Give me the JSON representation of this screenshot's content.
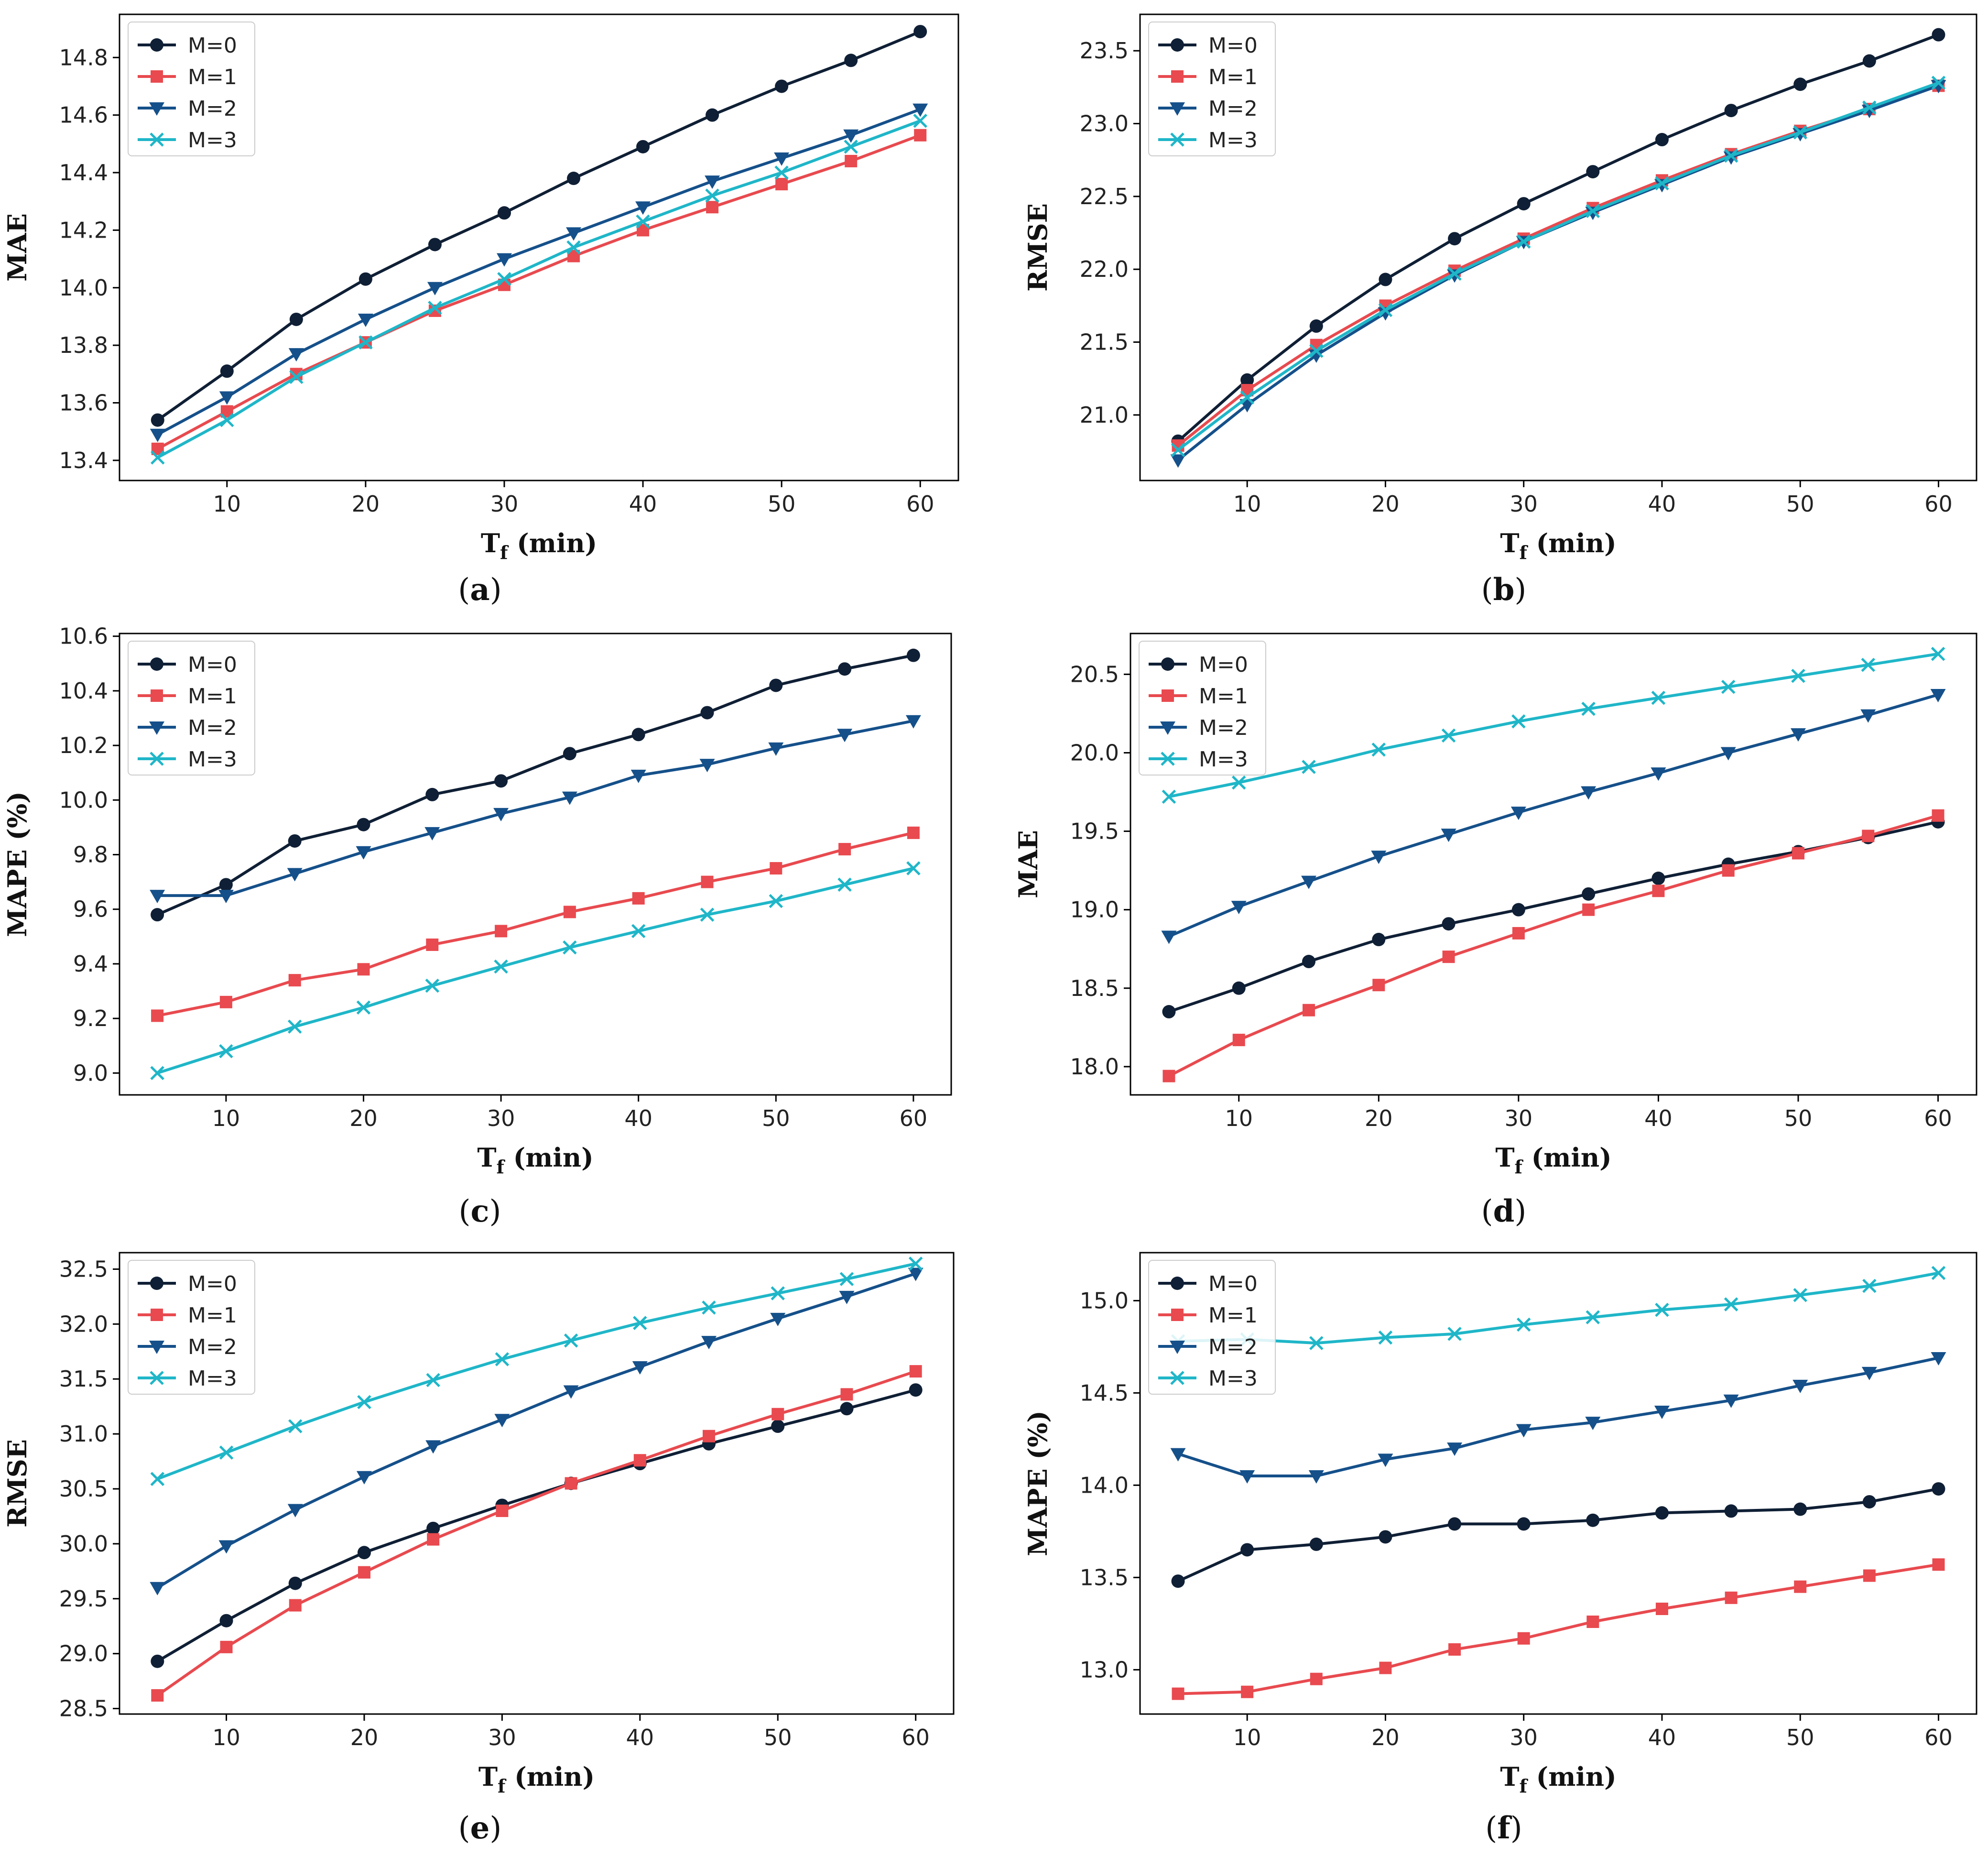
{
  "series_styles": [
    {
      "name": "M=0",
      "color": "#0f1f35",
      "marker": "circle"
    },
    {
      "name": "M=1",
      "color": "#e84a4f",
      "marker": "square"
    },
    {
      "name": "M=2",
      "color": "#15508a",
      "marker": "triangle-down"
    },
    {
      "name": "M=3",
      "color": "#1fb6c8",
      "marker": "x"
    }
  ],
  "chart_data": [
    {
      "panel": "(a)",
      "type": "line",
      "xlabel_main": "T",
      "xlabel_sub": "f",
      "xlabel_rest": " (min)",
      "ylabel": "MAE",
      "x": [
        5,
        10,
        15,
        20,
        25,
        30,
        35,
        40,
        45,
        50,
        55,
        60
      ],
      "xticks": [
        10,
        20,
        30,
        40,
        50,
        60
      ],
      "xlim": [
        2.25,
        62.75
      ],
      "ylim": [
        13.33,
        14.95
      ],
      "yticks": [
        13.4,
        13.6,
        13.8,
        14.0,
        14.2,
        14.4,
        14.6,
        14.8
      ],
      "ytick_labels": [
        "13.4",
        "13.6",
        "13.8",
        "14.0",
        "14.2",
        "14.4",
        "14.6",
        "14.8"
      ],
      "legend": "top-left",
      "series": [
        {
          "name": "M=0",
          "values": [
            13.54,
            13.71,
            13.89,
            14.03,
            14.15,
            14.26,
            14.38,
            14.49,
            14.6,
            14.7,
            14.79,
            14.89
          ]
        },
        {
          "name": "M=1",
          "values": [
            13.44,
            13.57,
            13.7,
            13.81,
            13.92,
            14.01,
            14.11,
            14.2,
            14.28,
            14.36,
            14.44,
            14.53
          ]
        },
        {
          "name": "M=2",
          "values": [
            13.49,
            13.62,
            13.77,
            13.89,
            14.0,
            14.1,
            14.19,
            14.28,
            14.37,
            14.45,
            14.53,
            14.62
          ]
        },
        {
          "name": "M=3",
          "values": [
            13.41,
            13.54,
            13.69,
            13.81,
            13.93,
            14.03,
            14.14,
            14.23,
            14.32,
            14.4,
            14.49,
            14.58
          ]
        }
      ]
    },
    {
      "panel": "(b)",
      "type": "line",
      "xlabel_main": "T",
      "xlabel_sub": "f",
      "xlabel_rest": " (min)",
      "ylabel": "RMSE",
      "x": [
        5,
        10,
        15,
        20,
        25,
        30,
        35,
        40,
        45,
        50,
        55,
        60
      ],
      "xticks": [
        10,
        20,
        30,
        40,
        50,
        60
      ],
      "xlim": [
        2.25,
        62.75
      ],
      "ylim": [
        20.55,
        23.75
      ],
      "yticks": [
        21.0,
        21.5,
        22.0,
        22.5,
        23.0,
        23.5
      ],
      "ytick_labels": [
        "21.0",
        "21.5",
        "22.0",
        "22.5",
        "23.0",
        "23.5"
      ],
      "legend": "top-left",
      "series": [
        {
          "name": "M=0",
          "values": [
            20.82,
            21.24,
            21.61,
            21.93,
            22.21,
            22.45,
            22.67,
            22.89,
            23.09,
            23.27,
            23.43,
            23.61
          ]
        },
        {
          "name": "M=1",
          "values": [
            20.79,
            21.17,
            21.48,
            21.75,
            21.99,
            22.21,
            22.42,
            22.61,
            22.79,
            22.95,
            23.1,
            23.26
          ]
        },
        {
          "name": "M=2",
          "values": [
            20.69,
            21.07,
            21.41,
            21.7,
            21.96,
            22.19,
            22.39,
            22.58,
            22.77,
            22.93,
            23.09,
            23.26
          ]
        },
        {
          "name": "M=3",
          "values": [
            20.76,
            21.12,
            21.44,
            21.72,
            21.97,
            22.19,
            22.4,
            22.59,
            22.78,
            22.94,
            23.11,
            23.28
          ]
        }
      ]
    },
    {
      "panel": "(c)",
      "type": "line",
      "xlabel_main": "T",
      "xlabel_sub": "f",
      "xlabel_rest": " (min)",
      "ylabel": "MAPE (%)",
      "x": [
        5,
        10,
        15,
        20,
        25,
        30,
        35,
        40,
        45,
        50,
        55,
        60
      ],
      "xticks": [
        10,
        20,
        30,
        40,
        50,
        60
      ],
      "xlim": [
        2.25,
        62.75
      ],
      "ylim": [
        8.92,
        10.61
      ],
      "yticks": [
        9.0,
        9.2,
        9.4,
        9.6,
        9.8,
        10.0,
        10.2,
        10.4,
        10.6
      ],
      "ytick_labels": [
        "9.0",
        "9.2",
        "9.4",
        "9.6",
        "9.8",
        "10.0",
        "10.2",
        "10.4",
        "10.6"
      ],
      "legend": "top-left",
      "series": [
        {
          "name": "M=0",
          "values": [
            9.58,
            9.69,
            9.85,
            9.91,
            10.02,
            10.07,
            10.17,
            10.24,
            10.32,
            10.42,
            10.48,
            10.53
          ]
        },
        {
          "name": "M=1",
          "values": [
            9.21,
            9.26,
            9.34,
            9.38,
            9.47,
            9.52,
            9.59,
            9.64,
            9.7,
            9.75,
            9.82,
            9.88
          ]
        },
        {
          "name": "M=2",
          "values": [
            9.65,
            9.65,
            9.73,
            9.81,
            9.88,
            9.95,
            10.01,
            10.09,
            10.13,
            10.19,
            10.24,
            10.29
          ]
        },
        {
          "name": "M=3",
          "values": [
            9.0,
            9.08,
            9.17,
            9.24,
            9.32,
            9.39,
            9.46,
            9.52,
            9.58,
            9.63,
            9.69,
            9.75
          ]
        }
      ]
    },
    {
      "panel": "(d)",
      "type": "line",
      "xlabel_main": "T",
      "xlabel_sub": "f",
      "xlabel_rest": " (min)",
      "ylabel": "MAE",
      "x": [
        5,
        10,
        15,
        20,
        25,
        30,
        35,
        40,
        45,
        50,
        55,
        60
      ],
      "xticks": [
        10,
        20,
        30,
        40,
        50,
        60
      ],
      "xlim": [
        2.25,
        62.75
      ],
      "ylim": [
        17.82,
        20.76
      ],
      "yticks": [
        18.0,
        18.5,
        19.0,
        19.5,
        20.0,
        20.5
      ],
      "ytick_labels": [
        "18.0",
        "18.5",
        "19.0",
        "19.5",
        "20.0",
        "20.5"
      ],
      "legend": "top-left",
      "series": [
        {
          "name": "M=0",
          "values": [
            18.35,
            18.5,
            18.67,
            18.81,
            18.91,
            19.0,
            19.1,
            19.2,
            19.29,
            19.37,
            19.46,
            19.56
          ]
        },
        {
          "name": "M=1",
          "values": [
            17.94,
            18.17,
            18.36,
            18.52,
            18.7,
            18.85,
            19.0,
            19.12,
            19.25,
            19.36,
            19.47,
            19.6
          ]
        },
        {
          "name": "M=2",
          "values": [
            18.83,
            19.02,
            19.18,
            19.34,
            19.48,
            19.62,
            19.75,
            19.87,
            20.0,
            20.12,
            20.24,
            20.37
          ]
        },
        {
          "name": "M=3",
          "values": [
            19.72,
            19.81,
            19.91,
            20.02,
            20.11,
            20.2,
            20.28,
            20.35,
            20.42,
            20.49,
            20.56,
            20.63
          ]
        }
      ]
    },
    {
      "panel": "(e)",
      "type": "line",
      "xlabel_main": "T",
      "xlabel_sub": "f",
      "xlabel_rest": " (min)",
      "ylabel": "RMSE",
      "x": [
        5,
        10,
        15,
        20,
        25,
        30,
        35,
        40,
        45,
        50,
        55,
        60
      ],
      "xticks": [
        10,
        20,
        30,
        40,
        50,
        60
      ],
      "xlim": [
        2.25,
        62.75
      ],
      "ylim": [
        28.45,
        32.65
      ],
      "yticks": [
        28.5,
        29.0,
        29.5,
        30.0,
        30.5,
        31.0,
        31.5,
        32.0,
        32.5
      ],
      "ytick_labels": [
        "28.5",
        "29.0",
        "29.5",
        "30.0",
        "30.5",
        "31.0",
        "31.5",
        "32.0",
        "32.5"
      ],
      "legend": "top-left",
      "series": [
        {
          "name": "M=0",
          "values": [
            28.93,
            29.3,
            29.64,
            29.92,
            30.14,
            30.35,
            30.55,
            30.73,
            30.91,
            31.07,
            31.23,
            31.4
          ]
        },
        {
          "name": "M=1",
          "values": [
            28.62,
            29.06,
            29.44,
            29.74,
            30.04,
            30.3,
            30.55,
            30.76,
            30.98,
            31.18,
            31.36,
            31.57
          ]
        },
        {
          "name": "M=2",
          "values": [
            29.6,
            29.98,
            30.31,
            30.61,
            30.89,
            31.13,
            31.39,
            31.61,
            31.84,
            32.05,
            32.25,
            32.46
          ]
        },
        {
          "name": "M=3",
          "values": [
            30.59,
            30.83,
            31.07,
            31.29,
            31.49,
            31.68,
            31.85,
            32.01,
            32.15,
            32.28,
            32.41,
            32.55
          ]
        }
      ]
    },
    {
      "panel": "(f)",
      "type": "line",
      "xlabel_main": "T",
      "xlabel_sub": "f",
      "xlabel_rest": " (min)",
      "ylabel": "MAPE (%)",
      "x": [
        5,
        10,
        15,
        20,
        25,
        30,
        35,
        40,
        45,
        50,
        55,
        60
      ],
      "xticks": [
        10,
        20,
        30,
        40,
        50,
        60
      ],
      "xlim": [
        2.25,
        62.75
      ],
      "ylim": [
        12.76,
        15.26
      ],
      "yticks": [
        13.0,
        13.5,
        14.0,
        14.5,
        15.0
      ],
      "ytick_labels": [
        "13.0",
        "13.5",
        "14.0",
        "14.5",
        "15.0"
      ],
      "legend": "top-left",
      "series": [
        {
          "name": "M=0",
          "values": [
            13.48,
            13.65,
            13.68,
            13.72,
            13.79,
            13.79,
            13.81,
            13.85,
            13.86,
            13.87,
            13.91,
            13.98
          ]
        },
        {
          "name": "M=1",
          "values": [
            12.87,
            12.88,
            12.95,
            13.01,
            13.11,
            13.17,
            13.26,
            13.33,
            13.39,
            13.45,
            13.51,
            13.57
          ]
        },
        {
          "name": "M=2",
          "values": [
            14.17,
            14.05,
            14.05,
            14.14,
            14.2,
            14.3,
            14.34,
            14.4,
            14.46,
            14.54,
            14.61,
            14.69
          ]
        },
        {
          "name": "M=3",
          "values": [
            14.78,
            14.79,
            14.77,
            14.8,
            14.82,
            14.87,
            14.91,
            14.95,
            14.98,
            15.03,
            15.08,
            15.15
          ]
        }
      ]
    }
  ]
}
